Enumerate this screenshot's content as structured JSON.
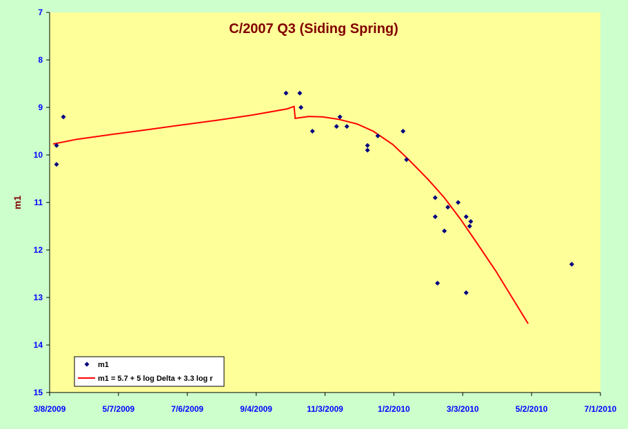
{
  "colors": {
    "page_background": "#ccffcc",
    "plot_background": "#ffff99",
    "marker": "#000080",
    "model_line": "#ff0000",
    "title": "#800000",
    "tick_labels": "#0000ff"
  },
  "chart_data": {
    "type": "scatter",
    "title": "C/2007 Q3 (Siding Spring)",
    "xlabel": "",
    "ylabel": "m1",
    "x_axis": {
      "type": "date",
      "range": [
        "2009-03-08",
        "2010-07-01"
      ],
      "ticks": [
        "2009-03-08",
        "2009-05-07",
        "2009-07-06",
        "2009-09-04",
        "2009-11-03",
        "2010-01-02",
        "2010-03-03",
        "2010-05-02",
        "2010-07-01"
      ],
      "tick_labels": [
        "3/8/2009",
        "5/7/2009",
        "7/6/2009",
        "9/4/2009",
        "11/3/2009",
        "1/2/2010",
        "3/3/2010",
        "5/2/2010",
        "7/1/2010"
      ]
    },
    "y_axis": {
      "range": [
        7,
        15
      ],
      "inverted": true,
      "ticks": [
        7,
        8,
        9,
        10,
        11,
        12,
        13,
        14,
        15
      ],
      "tick_labels": [
        "7",
        "8",
        "9",
        "10",
        "11",
        "12",
        "13",
        "14",
        "15"
      ]
    },
    "grid": false,
    "legend_position": "bottom-left",
    "series": [
      {
        "name": "m1",
        "kind": "scatter",
        "marker": "diamond",
        "points": [
          {
            "x": "2009-03-14",
            "y": 10.2
          },
          {
            "x": "2009-03-14",
            "y": 9.8
          },
          {
            "x": "2009-03-20",
            "y": 9.2
          },
          {
            "x": "2009-09-30",
            "y": 8.7
          },
          {
            "x": "2009-10-12",
            "y": 8.7
          },
          {
            "x": "2009-10-13",
            "y": 9.0
          },
          {
            "x": "2009-10-23",
            "y": 9.5
          },
          {
            "x": "2009-11-13",
            "y": 9.4
          },
          {
            "x": "2009-11-16",
            "y": 9.2
          },
          {
            "x": "2009-11-22",
            "y": 9.4
          },
          {
            "x": "2009-12-10",
            "y": 9.8
          },
          {
            "x": "2009-12-10",
            "y": 9.9
          },
          {
            "x": "2009-12-19",
            "y": 9.6
          },
          {
            "x": "2010-01-10",
            "y": 9.5
          },
          {
            "x": "2010-01-13",
            "y": 10.1
          },
          {
            "x": "2010-02-07",
            "y": 10.9
          },
          {
            "x": "2010-02-07",
            "y": 11.3
          },
          {
            "x": "2010-02-09",
            "y": 12.7
          },
          {
            "x": "2010-02-15",
            "y": 11.6
          },
          {
            "x": "2010-02-18",
            "y": 11.1
          },
          {
            "x": "2010-02-27",
            "y": 11.0
          },
          {
            "x": "2010-03-06",
            "y": 11.3
          },
          {
            "x": "2010-03-06",
            "y": 12.9
          },
          {
            "x": "2010-03-09",
            "y": 11.5
          },
          {
            "x": "2010-03-10",
            "y": 11.4
          },
          {
            "x": "2010-06-06",
            "y": 12.3
          }
        ]
      },
      {
        "name": "m1 = 5.7 + 5 log Delta + 3.3 log r",
        "kind": "line",
        "points": [
          {
            "x": "2009-03-11",
            "y": 9.77
          },
          {
            "x": "2009-04-01",
            "y": 9.67
          },
          {
            "x": "2009-05-01",
            "y": 9.57
          },
          {
            "x": "2009-06-01",
            "y": 9.47
          },
          {
            "x": "2009-07-01",
            "y": 9.37
          },
          {
            "x": "2009-08-01",
            "y": 9.27
          },
          {
            "x": "2009-09-01",
            "y": 9.16
          },
          {
            "x": "2009-10-01",
            "y": 9.03
          },
          {
            "x": "2009-10-07",
            "y": 8.98
          },
          {
            "x": "2009-10-08",
            "y": 9.23
          },
          {
            "x": "2009-10-20",
            "y": 9.19
          },
          {
            "x": "2009-11-01",
            "y": 9.2
          },
          {
            "x": "2009-11-15",
            "y": 9.25
          },
          {
            "x": "2009-12-01",
            "y": 9.35
          },
          {
            "x": "2009-12-15",
            "y": 9.5
          },
          {
            "x": "2010-01-01",
            "y": 9.78
          },
          {
            "x": "2010-01-15",
            "y": 10.1
          },
          {
            "x": "2010-02-01",
            "y": 10.52
          },
          {
            "x": "2010-02-15",
            "y": 10.9
          },
          {
            "x": "2010-03-01",
            "y": 11.35
          },
          {
            "x": "2010-03-15",
            "y": 11.84
          },
          {
            "x": "2010-04-01",
            "y": 12.45
          },
          {
            "x": "2010-04-15",
            "y": 13.0
          },
          {
            "x": "2010-04-29",
            "y": 13.55
          }
        ]
      }
    ]
  }
}
